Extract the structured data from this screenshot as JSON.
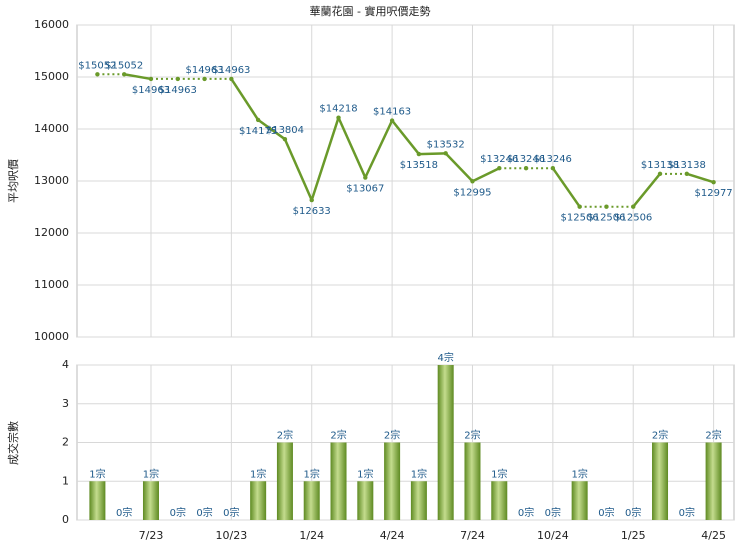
{
  "chart_data": [
    {
      "type": "line",
      "title": "華蘭花園 - 實用呎價走勢",
      "ylabel": "平均呎價",
      "color": "#6a9a2a",
      "values": [
        15052,
        15052,
        14963,
        14963,
        14963,
        14963,
        14175,
        13804,
        12633,
        14218,
        13067,
        14163,
        13518,
        13532,
        12995,
        13246,
        13246,
        13246,
        12506,
        12506,
        12506,
        13138,
        13138,
        12977
      ],
      "value_labels": [
        "$15052",
        "$15052",
        "$14963",
        "$14963",
        "$14963",
        "$14963",
        "$14175",
        "$13804",
        "$12633",
        "$14218",
        "$13067",
        "$14163",
        "$13518",
        "$13532",
        "$12995",
        "$13246",
        "$13246",
        "$13246",
        "$12506",
        "$12506",
        "$12506",
        "$13138",
        "$13138",
        "$12977"
      ],
      "ylim": [
        10000,
        16000
      ],
      "yticks": [
        10000,
        11000,
        12000,
        13000,
        14000,
        15000,
        16000
      ],
      "grid": true
    },
    {
      "type": "bar",
      "ylabel": "成交宗數",
      "color": "#7aa23a",
      "categories": [
        null,
        null,
        "7/23",
        null,
        null,
        "10/23",
        null,
        null,
        "1/24",
        null,
        null,
        "4/24",
        null,
        null,
        "7/24",
        null,
        null,
        "10/24",
        null,
        null,
        "1/25",
        null,
        null,
        "4/25"
      ],
      "values": [
        1,
        0,
        1,
        0,
        0,
        0,
        1,
        2,
        1,
        2,
        1,
        2,
        1,
        4,
        2,
        1,
        0,
        0,
        1,
        0,
        0,
        2,
        0,
        2
      ],
      "value_labels": [
        "1宗",
        "0宗",
        "1宗",
        "0宗",
        "0宗",
        "0宗",
        "1宗",
        "2宗",
        "1宗",
        "2宗",
        "1宗",
        "2宗",
        "1宗",
        "4宗",
        "2宗",
        "1宗",
        "0宗",
        "0宗",
        "1宗",
        "0宗",
        "0宗",
        "2宗",
        "0宗",
        "2宗"
      ],
      "ylim": [
        0,
        4
      ],
      "yticks": [
        0,
        1,
        2,
        3,
        4
      ],
      "grid": true
    }
  ]
}
